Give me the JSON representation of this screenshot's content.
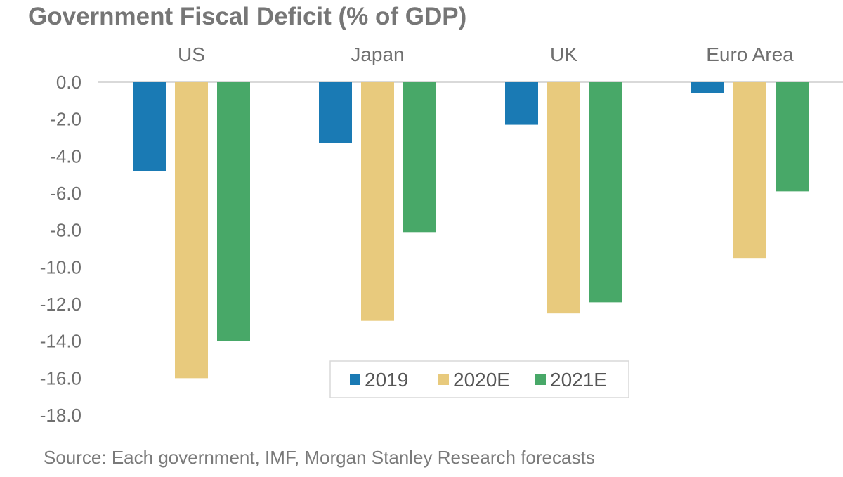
{
  "chart_data": {
    "type": "bar",
    "title": "Government Fiscal Deficit (% of GDP)",
    "source": "Source: Each government, IMF, Morgan Stanley Research forecasts",
    "categories": [
      "US",
      "Japan",
      "UK",
      "Euro Area"
    ],
    "category_axis_position": "top",
    "series": [
      {
        "name": "2019",
        "color": "#1a7ab4",
        "values": [
          -4.8,
          -3.3,
          -2.3,
          -0.6
        ]
      },
      {
        "name": "2020E",
        "color": "#e8ca7d",
        "values": [
          -16.0,
          -12.9,
          -12.5,
          -9.5
        ]
      },
      {
        "name": "2021E",
        "color": "#48a868",
        "values": [
          -14.0,
          -8.1,
          -11.9,
          -5.9
        ]
      }
    ],
    "ylim": [
      -18.0,
      0.0
    ],
    "yticks": [
      "0.0",
      "-2.0",
      "-4.0",
      "-6.0",
      "-8.0",
      "-10.0",
      "-12.0",
      "-14.0",
      "-16.0",
      "-18.0"
    ],
    "ytick_values": [
      0,
      -2,
      -4,
      -6,
      -8,
      -10,
      -12,
      -14,
      -16,
      -18
    ],
    "xlabel": "",
    "ylabel": "",
    "grid": false,
    "legend_position": "bottom-center"
  }
}
